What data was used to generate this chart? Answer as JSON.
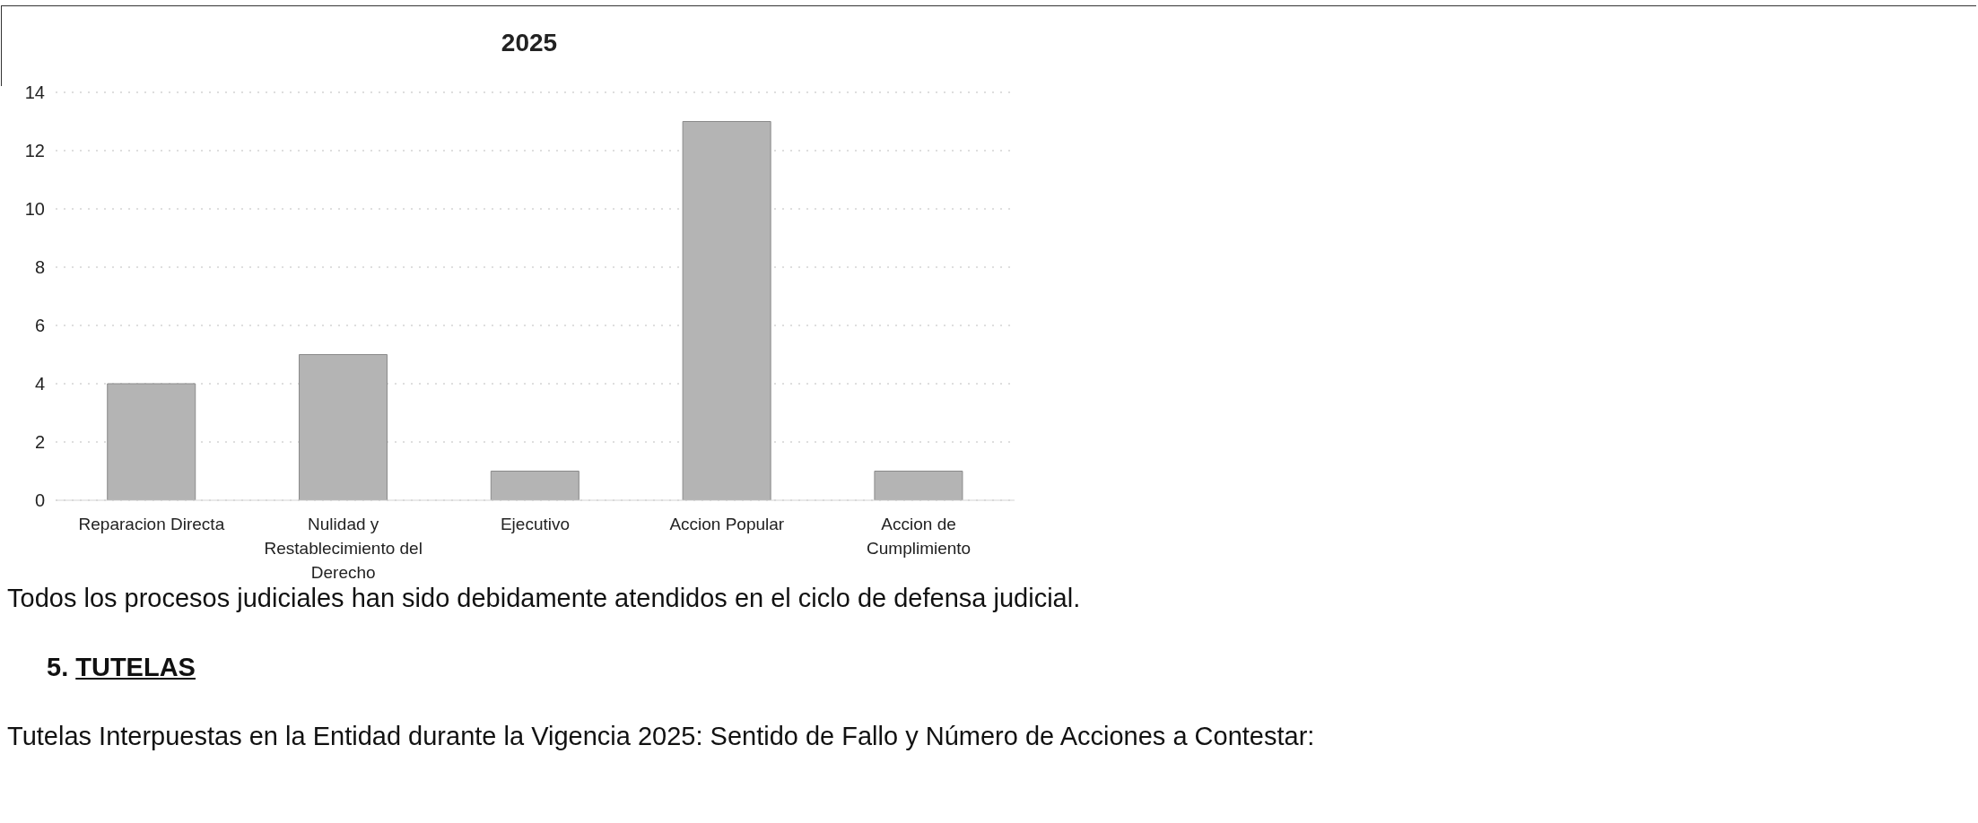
{
  "chart_data": {
    "type": "bar",
    "title": "2025",
    "categories": [
      "Reparacion Directa",
      "Nulidad y Restablecimiento del Derecho",
      "Ejecutivo",
      "Accion Popular",
      "Accion de Cumplimiento"
    ],
    "values": [
      4,
      5,
      1,
      13,
      1
    ],
    "color": "#b4b4b4",
    "ylim": [
      0,
      14
    ],
    "yticks": [
      0,
      2,
      4,
      6,
      8,
      10,
      12,
      14
    ],
    "grid": "y",
    "annotations": [
      "Todos los procesos judiciales han sido debidamente atendidos en el ciclo de defensa judicial.",
      "5. TUTELAS",
      "Tutelas Interpuestas en la Entidad durante la Vigencia 2025: Sentido de Fallo y Número de Acciones a Contestar:"
    ]
  }
}
